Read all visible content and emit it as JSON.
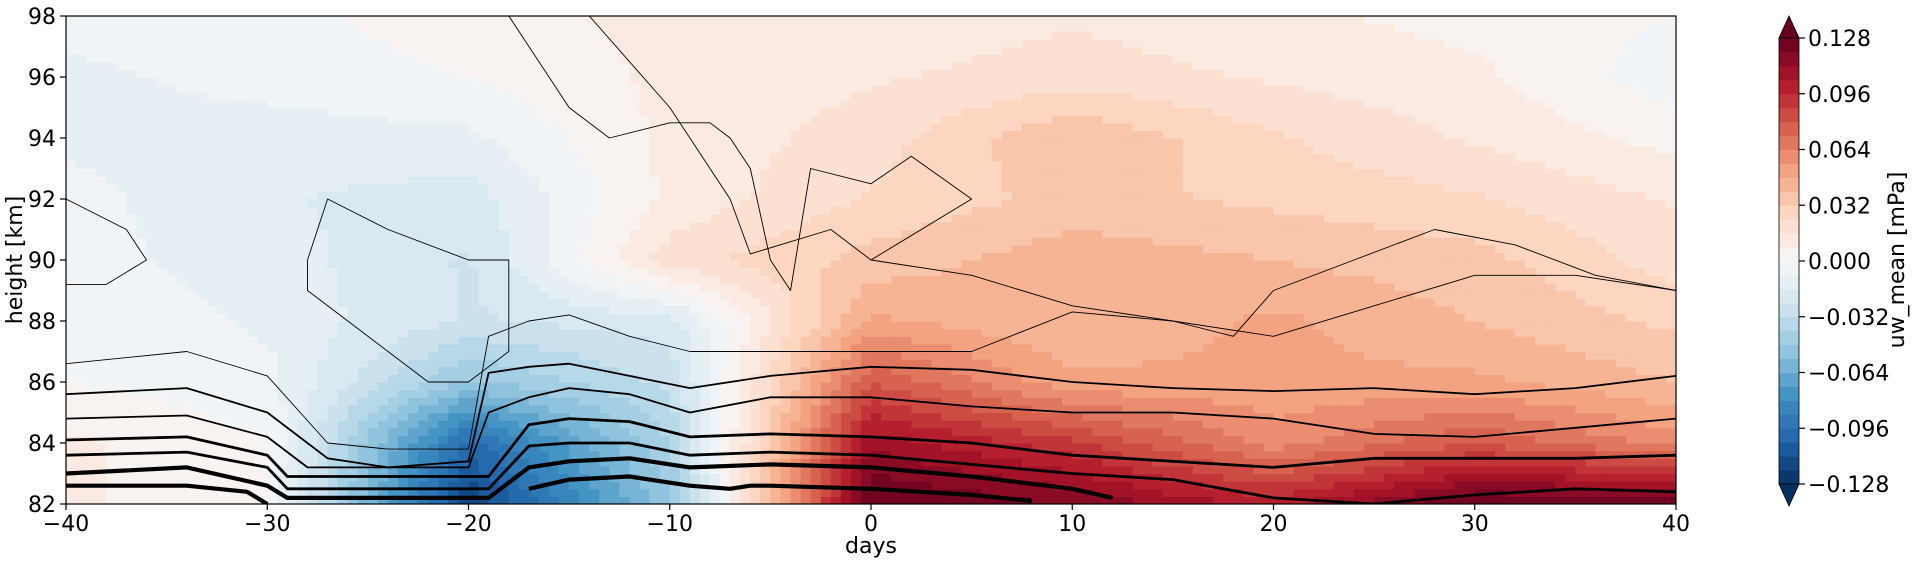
{
  "chart_data": {
    "type": "heatmap",
    "title": "",
    "xlabel": "days",
    "ylabel": "height [km]",
    "xlim": [
      -40,
      40
    ],
    "ylim": [
      82,
      98
    ],
    "x_ticks": [
      -40,
      -30,
      -20,
      -10,
      0,
      10,
      20,
      30,
      40
    ],
    "y_ticks": [
      82,
      84,
      86,
      88,
      90,
      92,
      94,
      96,
      98
    ],
    "colorbar": {
      "label": "uw_mean [mPa]",
      "colormap": "RdBu_r",
      "range": [
        -0.128,
        0.128
      ],
      "extend": "both",
      "ticks": [
        -0.128,
        -0.096,
        -0.064,
        -0.032,
        0.0,
        0.032,
        0.064,
        0.096,
        0.128
      ],
      "tick_labels": [
        "−0.128",
        "−0.096",
        "−0.064",
        "−0.032",
        "0.000",
        "0.032",
        "0.064",
        "0.096",
        "0.128"
      ]
    },
    "grid_x": [
      -40,
      -30,
      -20,
      -10,
      0,
      10,
      20,
      30,
      40
    ],
    "grid_y": [
      82,
      84,
      86,
      88,
      90,
      92,
      94,
      96,
      98
    ],
    "values": [
      [
        0.01,
        0.0,
        -0.12,
        -0.05,
        0.13,
        0.12,
        0.1,
        0.13,
        0.13
      ],
      [
        0.01,
        0.0,
        -0.1,
        -0.04,
        0.11,
        0.09,
        0.06,
        0.08,
        0.06
      ],
      [
        0.0,
        -0.005,
        -0.05,
        -0.03,
        0.08,
        0.05,
        0.05,
        0.05,
        0.04
      ],
      [
        0.0,
        -0.01,
        -0.025,
        -0.02,
        0.05,
        0.04,
        0.05,
        0.04,
        0.03
      ],
      [
        -0.005,
        -0.012,
        -0.025,
        0.02,
        0.035,
        0.045,
        0.04,
        0.035,
        0.02
      ],
      [
        -0.005,
        -0.015,
        -0.02,
        0.01,
        0.025,
        0.035,
        0.03,
        0.025,
        0.015
      ],
      [
        -0.01,
        -0.012,
        -0.01,
        0.01,
        0.02,
        0.04,
        0.025,
        0.015,
        0.005
      ],
      [
        -0.01,
        -0.005,
        0.0,
        0.01,
        0.015,
        0.02,
        0.015,
        0.01,
        -0.005
      ],
      [
        -0.005,
        -0.003,
        0.005,
        0.01,
        0.01,
        0.015,
        0.01,
        0.005,
        0.0
      ]
    ],
    "contour_lines": [
      {
        "weight": "thin",
        "x": [
          -40,
          -37,
          -36,
          -38,
          -40
        ],
        "y": [
          92,
          91,
          90,
          89.2,
          89.2
        ]
      },
      {
        "weight": "thin",
        "x": [
          -28,
          -27,
          -24,
          -20,
          -18,
          -18,
          -20,
          -22,
          -24,
          -26,
          -28,
          -28
        ],
        "y": [
          90,
          92,
          91,
          90,
          90,
          87,
          86,
          86,
          87,
          88,
          89,
          90
        ]
      },
      {
        "weight": "thin",
        "x": [
          -18,
          -17,
          -15,
          -13,
          -10,
          -8,
          -7,
          -6,
          -5,
          -4,
          -3,
          0,
          2,
          5,
          0,
          -2,
          -6,
          -7,
          -8,
          -10,
          -14
        ],
        "y": [
          98,
          97,
          95,
          94,
          94.5,
          94.5,
          94,
          93,
          90,
          89,
          93,
          92.5,
          93.4,
          92,
          90,
          91,
          90.2,
          92,
          93,
          95,
          98
        ]
      },
      {
        "weight": "thin",
        "x": [
          0,
          5,
          10,
          15,
          18,
          20,
          24,
          28,
          32,
          36,
          40
        ],
        "y": [
          90,
          89.5,
          88.5,
          88,
          87.5,
          89,
          90,
          91,
          90.5,
          89.5,
          89
        ]
      },
      {
        "weight": "thin",
        "x": [
          -40,
          -34,
          -30,
          -27,
          -24,
          -20,
          -19,
          -17,
          -15,
          -12,
          -9,
          -5,
          0,
          5,
          10,
          15,
          20,
          25,
          30,
          35,
          40
        ],
        "y": [
          86.6,
          87,
          86.2,
          84,
          83.8,
          83.8,
          87.5,
          88,
          88.2,
          87.5,
          87,
          87,
          87,
          87,
          88.3,
          88,
          87.5,
          88.5,
          89.5,
          89.5,
          89
        ]
      },
      {
        "weight": "medium",
        "x": [
          -40,
          -34,
          -30,
          -27,
          -24,
          -20,
          -19,
          -17,
          -15,
          -12,
          -9,
          -5,
          0,
          5,
          10,
          15,
          20,
          25,
          30,
          35,
          40
        ],
        "y": [
          85.6,
          85.8,
          85,
          83.5,
          83.2,
          83.4,
          86.3,
          86.5,
          86.6,
          86.2,
          85.8,
          86.2,
          86.5,
          86.4,
          86,
          85.8,
          85.7,
          85.8,
          85.6,
          85.8,
          86.2
        ]
      },
      {
        "weight": "medium",
        "x": [
          -40,
          -34,
          -30,
          -28,
          -20,
          -19,
          -17,
          -15,
          -12,
          -9,
          -5,
          0,
          5,
          10,
          15,
          20,
          25,
          30,
          35,
          40
        ],
        "y": [
          84.8,
          84.9,
          84.2,
          83.2,
          83.2,
          85,
          85.5,
          85.8,
          85.6,
          85,
          85.5,
          85.5,
          85.2,
          85,
          85,
          84.8,
          84.3,
          84.2,
          84.5,
          84.8
        ]
      },
      {
        "weight": "bold",
        "x": [
          -40,
          -34,
          -30,
          -29,
          -19,
          -17,
          -15,
          -12,
          -9,
          -5,
          0,
          5,
          10,
          15,
          20,
          25,
          30,
          35,
          40
        ],
        "y": [
          84.1,
          84.2,
          83.6,
          82.9,
          82.9,
          84.6,
          84.8,
          84.7,
          84.2,
          84.3,
          84.2,
          84,
          83.6,
          83.4,
          83.2,
          83.5,
          83.5,
          83.5,
          83.6
        ]
      },
      {
        "weight": "bold",
        "x": [
          -40,
          -34,
          -30,
          -29,
          -19,
          -17,
          -15,
          -12,
          -9,
          -5,
          0,
          5,
          10,
          15,
          20,
          25,
          30,
          35,
          40
        ],
        "y": [
          83.6,
          83.7,
          83.2,
          82.5,
          82.5,
          83.9,
          84,
          84,
          83.6,
          83.7,
          83.6,
          83.3,
          83,
          82.8,
          82.2,
          82,
          82.3,
          82.5,
          82.4
        ]
      },
      {
        "weight": "heavy",
        "x": [
          -40,
          -34,
          -30,
          -29,
          -19,
          -17,
          -15,
          -12,
          -9,
          -5,
          0,
          5,
          10,
          12
        ],
        "y": [
          83,
          83.2,
          82.6,
          82.2,
          82.2,
          83.2,
          83.4,
          83.5,
          83.2,
          83.3,
          83.2,
          82.9,
          82.5,
          82.2
        ]
      },
      {
        "weight": "heavy",
        "x": [
          -40,
          -34,
          -31,
          -30
        ],
        "y": [
          82.6,
          82.6,
          82.4,
          82
        ]
      },
      {
        "weight": "heavy",
        "x": [
          -17,
          -15,
          -12,
          -9,
          -7,
          -6,
          -5,
          0,
          5,
          8
        ],
        "y": [
          82.5,
          82.8,
          82.9,
          82.6,
          82.5,
          82.6,
          82.6,
          82.5,
          82.3,
          82.1
        ]
      }
    ]
  }
}
